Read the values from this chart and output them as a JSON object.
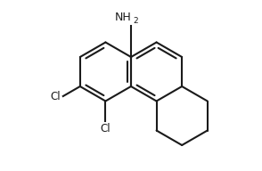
{
  "background_color": "#ffffff",
  "line_color": "#1a1a1a",
  "line_width": 1.5,
  "text_color": "#1a1a1a",
  "figsize": [
    2.94,
    1.92
  ],
  "dpi": 100,
  "xlim": [
    0,
    294
  ],
  "ylim": [
    0,
    192
  ]
}
